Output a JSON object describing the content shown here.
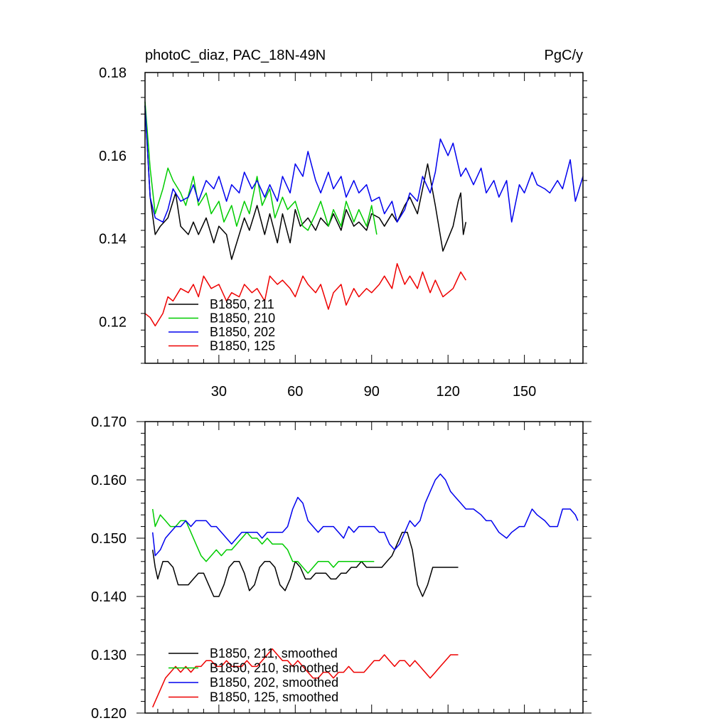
{
  "chart_data": [
    {
      "type": "line",
      "title": "photoC_diaz, PAC_18N-49N",
      "units": "PgC/y",
      "xlabel": "",
      "ylabel": "",
      "xlim": [
        1,
        173
      ],
      "ylim": [
        0.11,
        0.18
      ],
      "xticks": [
        30,
        60,
        90,
        120,
        150
      ],
      "xtick_labels": [
        "30",
        "60",
        "90",
        "120",
        "150"
      ],
      "yticks": [
        0.12,
        0.14,
        0.16,
        0.18
      ],
      "ytick_labels": [
        "0.12",
        "0.14",
        "0.16",
        "0.18"
      ],
      "legend_position": "bottom-left",
      "series": [
        {
          "name": "B1850, 211",
          "color": "#000000",
          "x": [
            1,
            3,
            5,
            7,
            10,
            13,
            15,
            18,
            20,
            22,
            25,
            28,
            30,
            33,
            35,
            38,
            40,
            42,
            45,
            48,
            50,
            53,
            55,
            58,
            60,
            62,
            65,
            68,
            70,
            73,
            75,
            78,
            80,
            83,
            85,
            88,
            90,
            93,
            95,
            98,
            100,
            103,
            105,
            108,
            110,
            112,
            115,
            118,
            120,
            122,
            124,
            125,
            126,
            127
          ],
          "values": [
            0.172,
            0.15,
            0.141,
            0.143,
            0.145,
            0.151,
            0.143,
            0.141,
            0.144,
            0.141,
            0.145,
            0.139,
            0.143,
            0.141,
            0.135,
            0.141,
            0.145,
            0.142,
            0.148,
            0.141,
            0.146,
            0.139,
            0.146,
            0.139,
            0.147,
            0.143,
            0.145,
            0.142,
            0.145,
            0.143,
            0.146,
            0.142,
            0.147,
            0.143,
            0.144,
            0.142,
            0.146,
            0.145,
            0.143,
            0.146,
            0.144,
            0.148,
            0.15,
            0.146,
            0.152,
            0.158,
            0.148,
            0.137,
            0.14,
            0.143,
            0.149,
            0.151,
            0.141,
            0.144
          ]
        },
        {
          "name": "B1850, 210",
          "color": "#00cc00",
          "x": [
            1,
            3,
            5,
            8,
            10,
            12,
            15,
            17,
            20,
            22,
            25,
            27,
            30,
            32,
            35,
            37,
            40,
            42,
            45,
            47,
            50,
            52,
            55,
            57,
            60,
            63,
            65,
            68,
            70,
            73,
            75,
            78,
            80,
            83,
            85,
            88,
            90,
            92
          ],
          "values": [
            0.173,
            0.157,
            0.146,
            0.152,
            0.157,
            0.154,
            0.151,
            0.148,
            0.155,
            0.148,
            0.151,
            0.146,
            0.149,
            0.144,
            0.148,
            0.143,
            0.149,
            0.146,
            0.155,
            0.148,
            0.152,
            0.145,
            0.15,
            0.147,
            0.149,
            0.143,
            0.142,
            0.146,
            0.149,
            0.143,
            0.147,
            0.143,
            0.149,
            0.144,
            0.147,
            0.143,
            0.148,
            0.141
          ]
        },
        {
          "name": "B1850, 202",
          "color": "#0000ee",
          "x": [
            1,
            3,
            5,
            8,
            10,
            12,
            15,
            18,
            20,
            22,
            25,
            28,
            30,
            33,
            35,
            38,
            40,
            43,
            45,
            48,
            50,
            53,
            55,
            58,
            60,
            63,
            65,
            68,
            70,
            73,
            75,
            78,
            80,
            83,
            85,
            88,
            90,
            93,
            95,
            98,
            100,
            103,
            105,
            108,
            110,
            113,
            115,
            117,
            120,
            122,
            125,
            127,
            130,
            133,
            135,
            138,
            140,
            143,
            145,
            148,
            150,
            153,
            155,
            158,
            160,
            163,
            165,
            168,
            170,
            173
          ],
          "values": [
            0.172,
            0.15,
            0.145,
            0.144,
            0.147,
            0.152,
            0.149,
            0.15,
            0.153,
            0.149,
            0.154,
            0.152,
            0.155,
            0.149,
            0.153,
            0.151,
            0.156,
            0.152,
            0.154,
            0.15,
            0.153,
            0.149,
            0.155,
            0.151,
            0.158,
            0.155,
            0.161,
            0.154,
            0.151,
            0.156,
            0.152,
            0.155,
            0.15,
            0.154,
            0.151,
            0.153,
            0.149,
            0.15,
            0.146,
            0.149,
            0.144,
            0.147,
            0.151,
            0.149,
            0.155,
            0.151,
            0.156,
            0.164,
            0.16,
            0.163,
            0.155,
            0.157,
            0.153,
            0.157,
            0.151,
            0.154,
            0.15,
            0.154,
            0.144,
            0.153,
            0.151,
            0.156,
            0.153,
            0.152,
            0.151,
            0.154,
            0.152,
            0.159,
            0.149,
            0.155
          ]
        },
        {
          "name": "B1850, 125",
          "color": "#ee0000",
          "x": [
            1,
            3,
            5,
            8,
            10,
            12,
            15,
            18,
            20,
            22,
            24,
            27,
            30,
            33,
            35,
            38,
            40,
            43,
            45,
            48,
            50,
            53,
            55,
            58,
            60,
            63,
            65,
            68,
            70,
            73,
            75,
            78,
            80,
            83,
            85,
            88,
            90,
            93,
            95,
            98,
            100,
            103,
            105,
            108,
            110,
            113,
            115,
            118,
            120,
            122,
            125,
            127
          ],
          "values": [
            0.122,
            0.121,
            0.119,
            0.122,
            0.126,
            0.125,
            0.128,
            0.127,
            0.129,
            0.126,
            0.131,
            0.128,
            0.129,
            0.125,
            0.127,
            0.126,
            0.129,
            0.127,
            0.128,
            0.125,
            0.131,
            0.129,
            0.13,
            0.128,
            0.126,
            0.131,
            0.129,
            0.127,
            0.129,
            0.123,
            0.127,
            0.129,
            0.124,
            0.128,
            0.126,
            0.128,
            0.127,
            0.129,
            0.131,
            0.128,
            0.134,
            0.129,
            0.131,
            0.128,
            0.132,
            0.127,
            0.13,
            0.126,
            0.127,
            0.128,
            0.132,
            0.13
          ]
        }
      ]
    },
    {
      "type": "line",
      "title": "",
      "xlabel": "",
      "ylabel": "",
      "xlim": [
        1,
        173
      ],
      "ylim": [
        0.12,
        0.17
      ],
      "xticks": [
        30,
        60,
        90,
        120,
        150
      ],
      "yticks": [
        0.12,
        0.13,
        0.14,
        0.15,
        0.16,
        0.17
      ],
      "ytick_labels": [
        "0.120",
        "0.130",
        "0.140",
        "0.150",
        "0.160",
        "0.170"
      ],
      "legend_position": "bottom-left",
      "series": [
        {
          "name": "B1850, 211, smoothed",
          "color": "#000000",
          "x": [
            4,
            5,
            6,
            8,
            10,
            12,
            14,
            16,
            18,
            20,
            22,
            24,
            26,
            28,
            30,
            32,
            34,
            36,
            38,
            40,
            42,
            44,
            46,
            48,
            50,
            52,
            54,
            56,
            58,
            60,
            62,
            64,
            66,
            68,
            70,
            72,
            74,
            76,
            78,
            80,
            82,
            84,
            86,
            88,
            90,
            92,
            94,
            96,
            98,
            100,
            102,
            104,
            106,
            108,
            110,
            112,
            114,
            116,
            118,
            120,
            122,
            124
          ],
          "values": [
            0.148,
            0.145,
            0.143,
            0.146,
            0.146,
            0.145,
            0.142,
            0.142,
            0.142,
            0.143,
            0.144,
            0.144,
            0.142,
            0.14,
            0.14,
            0.142,
            0.145,
            0.146,
            0.146,
            0.144,
            0.141,
            0.142,
            0.145,
            0.146,
            0.146,
            0.145,
            0.142,
            0.141,
            0.143,
            0.146,
            0.145,
            0.143,
            0.143,
            0.144,
            0.144,
            0.144,
            0.143,
            0.143,
            0.144,
            0.144,
            0.145,
            0.145,
            0.146,
            0.145,
            0.145,
            0.145,
            0.145,
            0.146,
            0.147,
            0.149,
            0.151,
            0.151,
            0.148,
            0.142,
            0.14,
            0.142,
            0.145,
            0.145,
            0.145,
            0.145,
            0.145,
            0.145
          ]
        },
        {
          "name": "B1850, 210, smoothed",
          "color": "#00cc00",
          "x": [
            4,
            5,
            7,
            9,
            11,
            13,
            15,
            17,
            19,
            21,
            23,
            25,
            27,
            29,
            31,
            33,
            35,
            37,
            39,
            41,
            43,
            45,
            47,
            49,
            51,
            53,
            55,
            57,
            59,
            61,
            63,
            65,
            67,
            69,
            71,
            73,
            75,
            77,
            79,
            81,
            83,
            85,
            87,
            89,
            91
          ],
          "values": [
            0.155,
            0.152,
            0.154,
            0.153,
            0.152,
            0.152,
            0.153,
            0.153,
            0.151,
            0.149,
            0.147,
            0.146,
            0.147,
            0.148,
            0.147,
            0.148,
            0.148,
            0.149,
            0.15,
            0.151,
            0.15,
            0.15,
            0.149,
            0.15,
            0.149,
            0.149,
            0.149,
            0.148,
            0.146,
            0.146,
            0.145,
            0.144,
            0.145,
            0.146,
            0.146,
            0.146,
            0.145,
            0.146,
            0.146,
            0.146,
            0.146,
            0.146,
            0.146,
            0.146,
            0.146
          ]
        },
        {
          "name": "B1850, 202, smoothed",
          "color": "#0000ee",
          "x": [
            4,
            5,
            7,
            9,
            11,
            13,
            15,
            17,
            19,
            21,
            23,
            25,
            27,
            29,
            31,
            33,
            35,
            37,
            39,
            41,
            43,
            45,
            47,
            49,
            51,
            53,
            55,
            57,
            59,
            61,
            63,
            65,
            67,
            69,
            71,
            73,
            75,
            77,
            79,
            81,
            83,
            85,
            87,
            89,
            91,
            93,
            95,
            97,
            99,
            101,
            103,
            105,
            107,
            109,
            111,
            113,
            115,
            117,
            119,
            121,
            123,
            125,
            127,
            130,
            133,
            135,
            137,
            140,
            143,
            145,
            148,
            150,
            153,
            155,
            158,
            160,
            163,
            165,
            168,
            170,
            171
          ],
          "values": [
            0.151,
            0.147,
            0.148,
            0.15,
            0.151,
            0.152,
            0.152,
            0.153,
            0.152,
            0.153,
            0.153,
            0.153,
            0.152,
            0.152,
            0.151,
            0.15,
            0.149,
            0.15,
            0.151,
            0.151,
            0.151,
            0.151,
            0.15,
            0.151,
            0.151,
            0.151,
            0.151,
            0.152,
            0.155,
            0.157,
            0.156,
            0.153,
            0.152,
            0.151,
            0.152,
            0.152,
            0.152,
            0.151,
            0.15,
            0.152,
            0.151,
            0.152,
            0.152,
            0.152,
            0.152,
            0.151,
            0.151,
            0.149,
            0.148,
            0.149,
            0.151,
            0.153,
            0.152,
            0.153,
            0.156,
            0.158,
            0.16,
            0.161,
            0.16,
            0.158,
            0.157,
            0.156,
            0.155,
            0.155,
            0.154,
            0.153,
            0.153,
            0.151,
            0.15,
            0.151,
            0.152,
            0.152,
            0.155,
            0.154,
            0.153,
            0.152,
            0.152,
            0.155,
            0.155,
            0.154,
            0.153
          ]
        },
        {
          "name": "B1850, 125, smoothed",
          "color": "#ee0000",
          "x": [
            4,
            5,
            7,
            9,
            11,
            13,
            15,
            17,
            19,
            21,
            23,
            25,
            27,
            29,
            31,
            33,
            35,
            37,
            39,
            41,
            43,
            45,
            47,
            49,
            51,
            53,
            55,
            57,
            59,
            61,
            63,
            65,
            67,
            69,
            71,
            73,
            75,
            77,
            79,
            81,
            83,
            85,
            87,
            89,
            91,
            93,
            95,
            97,
            99,
            101,
            103,
            105,
            107,
            109,
            111,
            113,
            115,
            117,
            119,
            121,
            123,
            124
          ],
          "values": [
            0.121,
            0.122,
            0.124,
            0.126,
            0.127,
            0.128,
            0.127,
            0.128,
            0.127,
            0.128,
            0.128,
            0.129,
            0.129,
            0.128,
            0.128,
            0.129,
            0.128,
            0.128,
            0.128,
            0.129,
            0.128,
            0.128,
            0.129,
            0.13,
            0.131,
            0.13,
            0.129,
            0.129,
            0.128,
            0.129,
            0.128,
            0.127,
            0.126,
            0.126,
            0.127,
            0.127,
            0.126,
            0.127,
            0.127,
            0.128,
            0.127,
            0.127,
            0.127,
            0.128,
            0.129,
            0.129,
            0.13,
            0.129,
            0.128,
            0.129,
            0.129,
            0.128,
            0.129,
            0.128,
            0.127,
            0.126,
            0.127,
            0.128,
            0.129,
            0.13,
            0.13,
            0.13
          ]
        }
      ]
    }
  ]
}
